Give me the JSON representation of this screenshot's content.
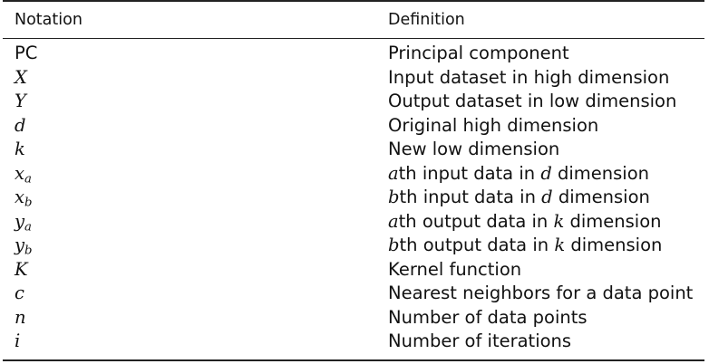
{
  "header": {
    "notation": "Notation",
    "definition": "Definition"
  },
  "rows": [
    {
      "sym": "PC",
      "sym_style": "plain",
      "def": [
        "Principal component"
      ]
    },
    {
      "sym": "X",
      "sym_style": "italic",
      "def": [
        "Input dataset in high dimension"
      ]
    },
    {
      "sym": "Y",
      "sym_style": "italic",
      "def": [
        "Output dataset in low dimension"
      ]
    },
    {
      "sym": "d",
      "sym_style": "italic",
      "def": [
        "Original high dimension"
      ]
    },
    {
      "sym": "k",
      "sym_style": "italic",
      "def": [
        "New low dimension"
      ]
    },
    {
      "sym": "x",
      "sub": "a",
      "sym_style": "italic",
      "def": [
        "a",
        "th input data in ",
        "d",
        " dimension"
      ]
    },
    {
      "sym": "x",
      "sub": "b",
      "sym_style": "italic",
      "def": [
        "b",
        "th input data in ",
        "d",
        " dimension"
      ]
    },
    {
      "sym": "y",
      "sub": "a",
      "sym_style": "italic",
      "def": [
        "a",
        "th output data in ",
        "k",
        " dimension"
      ]
    },
    {
      "sym": "y",
      "sub": "b",
      "sym_style": "italic",
      "def": [
        "b",
        "th output data in ",
        "k",
        " dimension"
      ]
    },
    {
      "sym": "K",
      "sym_style": "italic",
      "def": [
        "Kernel function"
      ]
    },
    {
      "sym": "c",
      "sym_style": "italic",
      "def": [
        "Nearest neighbors for a data point"
      ]
    },
    {
      "sym": "n",
      "sym_style": "italic",
      "def": [
        "Number of data points"
      ]
    },
    {
      "sym": "i",
      "sym_style": "italic",
      "def": [
        "Number of iterations"
      ]
    }
  ]
}
